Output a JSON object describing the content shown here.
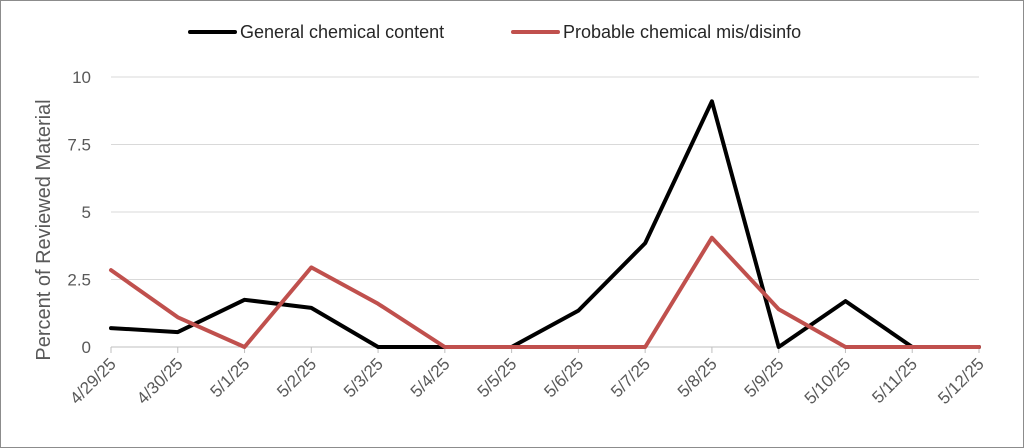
{
  "chart_data": {
    "type": "line",
    "title": "",
    "xlabel": "",
    "ylabel": "Percent of Reviewed Material",
    "ylim": [
      0,
      10
    ],
    "yticks": [
      "0",
      "2.5",
      "5",
      "7.5",
      "10"
    ],
    "grid": true,
    "legend_position": "top",
    "categories": [
      "4/29/25",
      "4/30/25",
      "5/1/25",
      "5/2/25",
      "5/3/25",
      "5/4/25",
      "5/5/25",
      "5/6/25",
      "5/7/25",
      "5/8/25",
      "5/9/25",
      "5/10/25",
      "5/11/25",
      "5/12/25"
    ],
    "series": [
      {
        "name": "General chemical content",
        "color": "#000000",
        "values": [
          0.7,
          0.55,
          1.75,
          1.45,
          0,
          0,
          0,
          1.35,
          3.85,
          9.1,
          0,
          1.7,
          0,
          0
        ]
      },
      {
        "name": "Probable chemical mis/disinfo",
        "color": "#c0504d",
        "values": [
          2.85,
          1.1,
          0,
          2.95,
          1.6,
          0,
          0,
          0,
          0,
          4.05,
          1.4,
          0,
          0,
          0
        ]
      }
    ]
  }
}
